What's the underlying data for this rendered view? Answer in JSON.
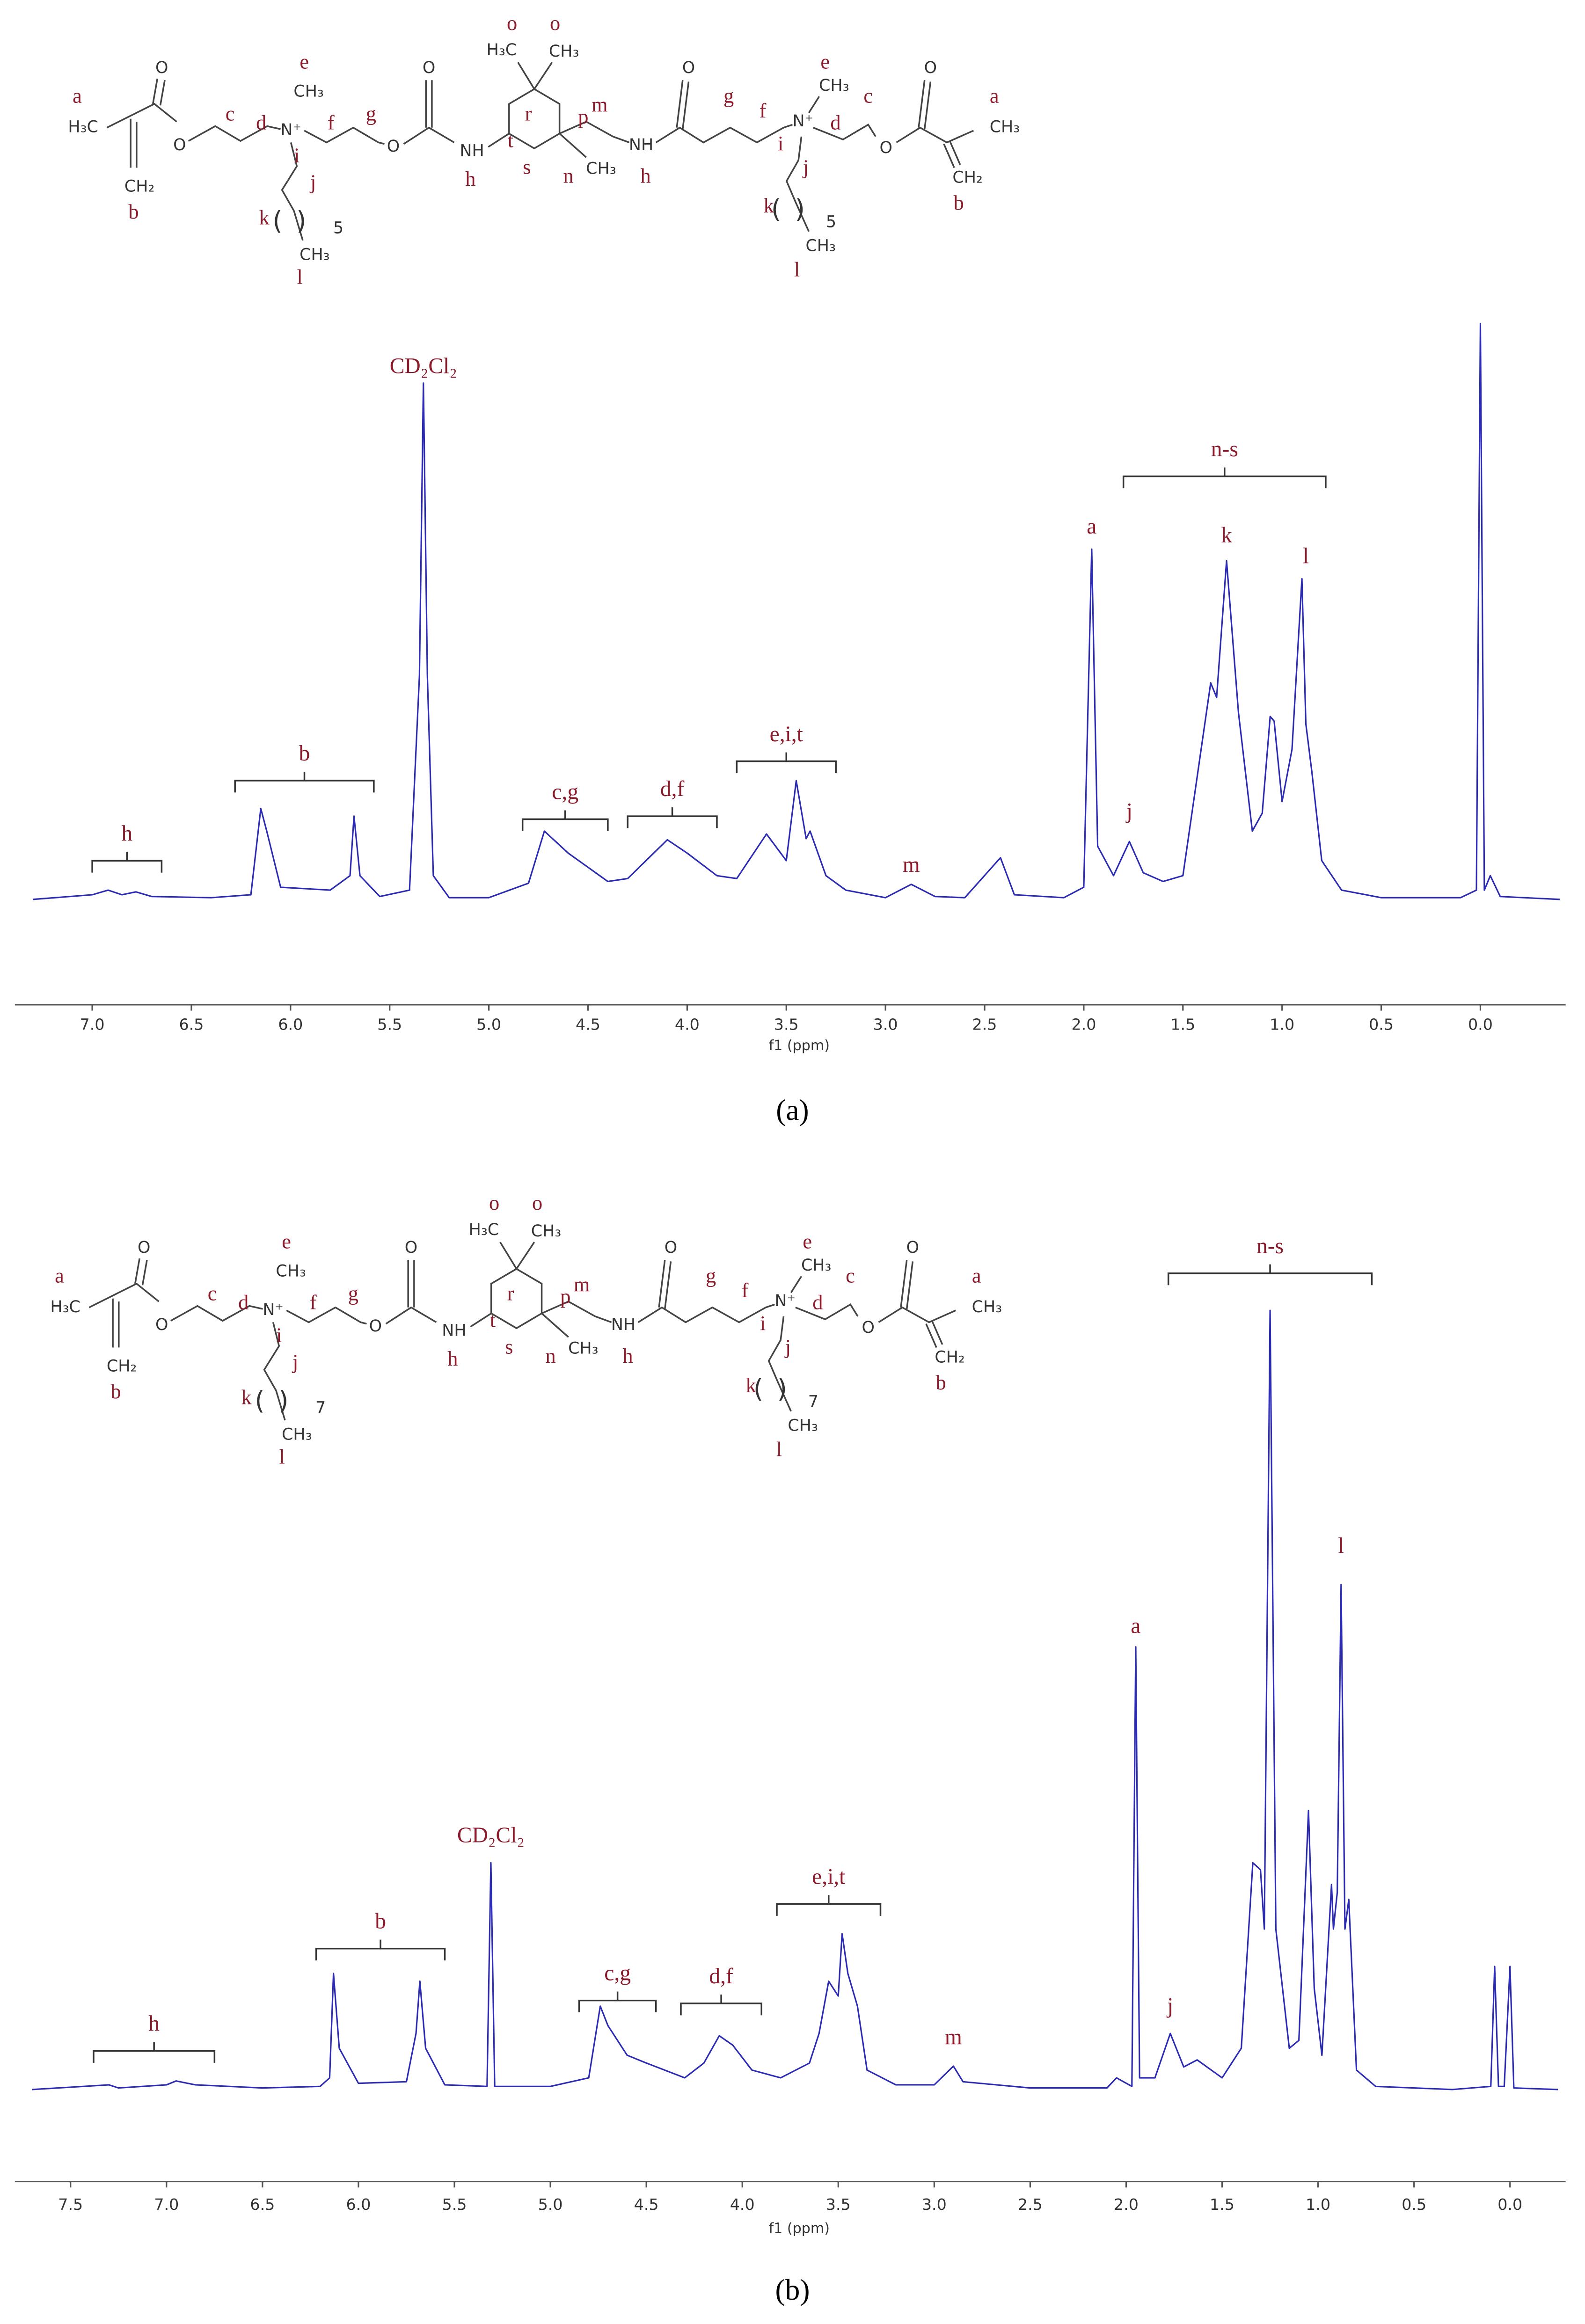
{
  "chart_data": [
    {
      "type": "line",
      "color": "#2b2bb4",
      "xlabel": "f1 (ppm)",
      "xlim": [
        7.39,
        -0.43
      ],
      "ylim": [
        0,
        100
      ],
      "xticks": [
        {
          "value": 7,
          "label": "7.0"
        },
        6.5,
        {
          "value": 6,
          "label": "6.0"
        },
        5.5,
        {
          "value": 5,
          "label": "5.0"
        },
        4.5,
        {
          "value": 4,
          "label": "4.0"
        },
        3.5,
        {
          "value": 3,
          "label": "3.0"
        },
        2.5,
        {
          "value": 2,
          "label": "2.0"
        },
        1.5,
        {
          "value": 1,
          "label": "1.0"
        },
        0.5,
        {
          "value": 0,
          "label": "0.0"
        }
      ],
      "x": [
        7.3,
        7.0,
        6.92,
        6.85,
        6.78,
        6.7,
        6.4,
        6.2,
        6.15,
        6.12,
        6.05,
        5.8,
        5.7,
        5.68,
        5.65,
        5.55,
        5.4,
        5.35,
        5.33,
        5.31,
        5.28,
        5.2,
        5.0,
        4.8,
        4.72,
        4.6,
        4.4,
        4.3,
        4.1,
        4.0,
        3.85,
        3.75,
        3.6,
        3.5,
        3.45,
        3.4,
        3.38,
        3.3,
        3.2,
        3.0,
        2.87,
        2.75,
        2.6,
        2.42,
        2.35,
        2.1,
        2.0,
        1.96,
        1.93,
        1.85,
        1.77,
        1.7,
        1.6,
        1.5,
        1.36,
        1.33,
        1.28,
        1.22,
        1.15,
        1.1,
        1.06,
        1.04,
        1.0,
        0.95,
        0.9,
        0.88,
        0.85,
        0.8,
        0.7,
        0.5,
        0.1,
        0.02,
        0.0,
        -0.02,
        -0.05,
        -0.1,
        -0.4
      ],
      "values": [
        0.5,
        1.3,
        2.1,
        1.3,
        1.8,
        1.0,
        0.8,
        1.3,
        16.2,
        12.3,
        2.6,
        2.1,
        4.6,
        14.9,
        4.6,
        1.0,
        2.1,
        39.2,
        89.7,
        39.2,
        4.6,
        0.8,
        0.8,
        3.3,
        12.3,
        8.5,
        3.6,
        4.1,
        10.8,
        8.5,
        4.6,
        4.1,
        11.8,
        7.2,
        21.0,
        11.0,
        12.3,
        4.6,
        2.1,
        0.8,
        3.1,
        1.0,
        0.8,
        7.7,
        1.3,
        0.8,
        2.6,
        61.0,
        9.7,
        4.6,
        10.5,
        5.1,
        3.6,
        4.6,
        37.9,
        35.4,
        59.0,
        32.8,
        12.3,
        15.4,
        32.1,
        31.3,
        17.4,
        26.4,
        55.9,
        30.8,
        22.6,
        7.2,
        2.1,
        0.8,
        0.8,
        2.1,
        100,
        2.1,
        4.6,
        1.0,
        0.5
      ],
      "peak_labels": [
        "CD₂Cl₂",
        "a",
        "k",
        "l",
        "j",
        "m"
      ],
      "bracket_labels": [
        "h",
        "b",
        "c,g",
        "d,f",
        "e,i,t",
        "n-s"
      ]
    },
    {
      "type": "line",
      "color": "#2b2bb4",
      "xlabel": "f1 (ppm)",
      "xlim": [
        7.79,
        -0.29
      ],
      "ylim": [
        0,
        100
      ],
      "xticks": [
        7.5,
        {
          "value": 7,
          "label": "7.0"
        },
        6.5,
        {
          "value": 6,
          "label": "6.0"
        },
        5.5,
        {
          "value": 5,
          "label": "5.0"
        },
        4.5,
        {
          "value": 4,
          "label": "4.0"
        },
        3.5,
        {
          "value": 3,
          "label": "3.0"
        },
        2.5,
        {
          "value": 2,
          "label": "2.0"
        },
        1.5,
        {
          "value": 1,
          "label": "1.0"
        },
        0.5,
        {
          "value": 0,
          "label": "0.0"
        }
      ],
      "x": [
        7.7,
        7.3,
        7.25,
        7.0,
        6.95,
        6.85,
        6.5,
        6.2,
        6.15,
        6.13,
        6.1,
        6.0,
        5.75,
        5.7,
        5.68,
        5.65,
        5.55,
        5.33,
        5.31,
        5.29,
        5.0,
        4.8,
        4.74,
        4.7,
        4.6,
        4.5,
        4.3,
        4.2,
        4.12,
        4.05,
        3.95,
        3.8,
        3.65,
        3.6,
        3.55,
        3.5,
        3.48,
        3.45,
        3.4,
        3.35,
        3.2,
        3.0,
        2.9,
        2.85,
        2.5,
        2.1,
        2.05,
        1.97,
        1.95,
        1.93,
        1.85,
        1.77,
        1.7,
        1.63,
        1.5,
        1.4,
        1.34,
        1.3,
        1.28,
        1.25,
        1.22,
        1.15,
        1.1,
        1.05,
        1.02,
        0.98,
        0.93,
        0.92,
        0.9,
        0.88,
        0.86,
        0.84,
        0.8,
        0.7,
        0.3,
        0.1,
        0.08,
        0.06,
        0.03,
        0.0,
        -0.02,
        -0.25
      ],
      "values": [
        0,
        0.6,
        0.2,
        0.6,
        1.1,
        0.6,
        0.2,
        0.4,
        1.5,
        14.9,
        5.3,
        0.8,
        1.0,
        7.2,
        13.9,
        5.3,
        0.6,
        0.4,
        29.1,
        0.4,
        0.4,
        1.5,
        10.7,
        8.2,
        4.4,
        3.4,
        1.5,
        3.4,
        6.9,
        5.7,
        2.5,
        1.5,
        3.4,
        7.2,
        13.9,
        12.0,
        20.0,
        14.9,
        10.7,
        2.5,
        0.6,
        0.6,
        3.0,
        1.0,
        0.2,
        0.2,
        1.5,
        0.4,
        56.8,
        1.5,
        1.5,
        7.2,
        2.9,
        3.8,
        1.5,
        5.3,
        29.1,
        28.2,
        20.6,
        100,
        20.6,
        5.3,
        6.3,
        35.8,
        13.0,
        4.4,
        26.3,
        20.6,
        25.3,
        64.8,
        20.6,
        24.4,
        2.5,
        0.4,
        0,
        0.4,
        15.8,
        0.4,
        0.4,
        15.8,
        0.2,
        0
      ],
      "peak_labels": [
        "CD₂Cl₂",
        "a",
        "l",
        "j",
        "m"
      ],
      "bracket_labels": [
        "h",
        "b",
        "c,g",
        "d,f",
        "e,i,t",
        "n-s"
      ]
    }
  ],
  "structures": [
    {
      "labels": [
        "a",
        "H₃C",
        "O",
        "O",
        "CH₂",
        "b",
        "c",
        "d",
        "e",
        "CH₃",
        "N⁺",
        "i",
        "f",
        "j",
        "g",
        "O",
        "O",
        "NH",
        "h",
        "o",
        "o",
        "H₃C",
        "CH₃",
        "r",
        "p",
        "t",
        "m",
        "s",
        "n",
        "CH₃",
        "NH",
        "h",
        "O",
        "g",
        "f",
        "e",
        "CH₃",
        "N⁺",
        "i",
        "d",
        "j",
        "c",
        "O",
        "O",
        "a",
        "CH₃",
        "CH₂",
        "b",
        "k",
        "( )",
        "5",
        "CH₃",
        "l",
        "k",
        "( )",
        "5",
        "CH₃",
        "l"
      ]
    },
    {
      "labels": [
        "a",
        "H₃C",
        "O",
        "O",
        "CH₂",
        "b",
        "c",
        "d",
        "e",
        "CH₃",
        "N⁺",
        "i",
        "f",
        "j",
        "g",
        "O",
        "O",
        "NH",
        "h",
        "o",
        "o",
        "H₃C",
        "CH₃",
        "r",
        "p",
        "t",
        "m",
        "s",
        "n",
        "CH₃",
        "NH",
        "h",
        "O",
        "g",
        "f",
        "e",
        "CH₃",
        "N⁺",
        "i",
        "d",
        "j",
        "c",
        "O",
        "O",
        "a",
        "CH₃",
        "CH₂",
        "b",
        "k",
        "( )",
        "7",
        "CH₃",
        "l",
        "k",
        "( )",
        "7",
        "CH₃",
        "l"
      ]
    }
  ],
  "captions": [
    "(a)",
    "(b)"
  ]
}
